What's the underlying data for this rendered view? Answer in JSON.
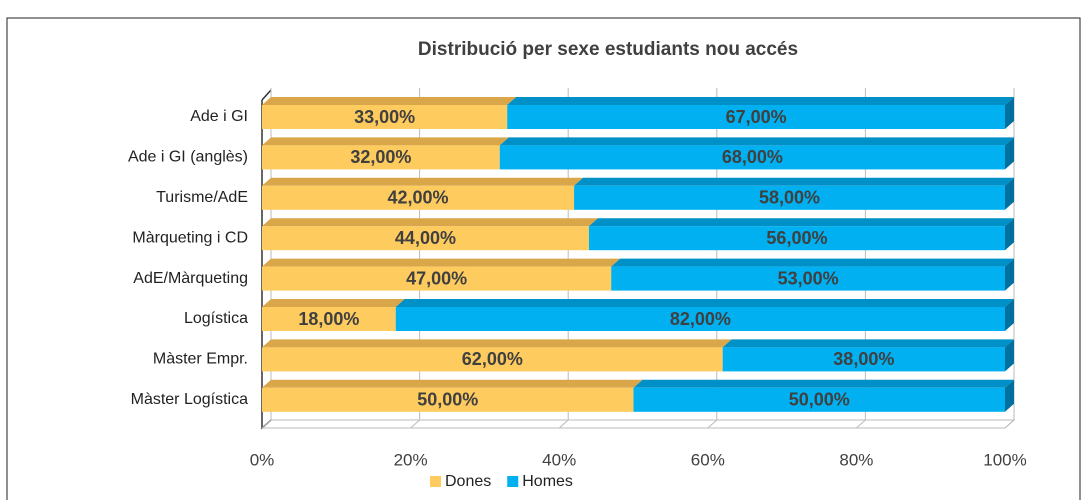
{
  "chart_data": {
    "type": "stacked-bar-horizontal",
    "title": "Distribució per sexe estudiants nou accés",
    "categories": [
      "Ade i GI",
      "Ade i GI (anglès)",
      "Turisme/AdE",
      "Màrqueting i CD",
      "AdE/Màrqueting",
      "Logística",
      "Màster Empr.",
      "Màster Logística"
    ],
    "series": [
      {
        "name": "Dones",
        "color": "#FECB5F",
        "top_color": "#D9A64A",
        "values": [
          33,
          32,
          42,
          44,
          47,
          18,
          62,
          50
        ],
        "value_labels": [
          "33,00%",
          "32,00%",
          "42,00%",
          "44,00%",
          "47,00%",
          "18,00%",
          "62,00%",
          "50,00%"
        ]
      },
      {
        "name": "Homes",
        "color": "#00B0F0",
        "top_color": "#0090C8",
        "values": [
          67,
          68,
          58,
          56,
          53,
          82,
          38,
          50
        ],
        "value_labels": [
          "67,00%",
          "68,00%",
          "58,00%",
          "56,00%",
          "53,00%",
          "82,00%",
          "38,00%",
          "50,00%"
        ]
      }
    ],
    "xlim": [
      0,
      100
    ],
    "xticks": [
      {
        "value": 0,
        "label": "0%"
      },
      {
        "value": 20,
        "label": "20%"
      },
      {
        "value": 40,
        "label": "40%"
      },
      {
        "value": 60,
        "label": "60%"
      },
      {
        "value": 80,
        "label": "80%"
      },
      {
        "value": 100,
        "label": "100%"
      }
    ],
    "grid": true,
    "legend": "bottom"
  }
}
